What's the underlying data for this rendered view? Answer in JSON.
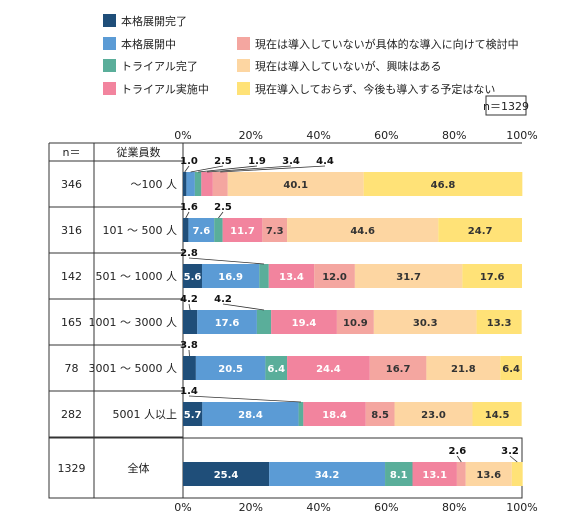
{
  "chart_data": {
    "type": "bar",
    "orientation": "horizontal",
    "stacked": true,
    "percent": true,
    "xlim": [
      0,
      100
    ],
    "x_ticks": [
      "0%",
      "20%",
      "40%",
      "60%",
      "80%",
      "100%"
    ],
    "n_label": "n＝1329",
    "table_headers": {
      "n": "n＝",
      "size": "従業員数"
    },
    "colors": [
      "#1f4e79",
      "#5b9bd5",
      "#5aae9a",
      "#f2849e",
      "#f4a6a0",
      "#fdd6a2",
      "#ffe277"
    ],
    "series": [
      {
        "name": "本格展開完了"
      },
      {
        "name": "本格展開中"
      },
      {
        "name": "トライアル完了"
      },
      {
        "name": "トライアル実施中"
      },
      {
        "name": "現在は導入していないが具体的な導入に向けて検討中"
      },
      {
        "name": "現在は導入していないが、興味はある"
      },
      {
        "name": "現在導入しておらず、今後も導入する予定はない"
      }
    ],
    "rows": [
      {
        "n": "346",
        "label": "～100 人",
        "values": [
          1.0,
          2.5,
          1.9,
          3.4,
          4.4,
          40.1,
          46.8
        ],
        "labels": [
          "1.0",
          "2.5",
          "1.9",
          "3.4",
          "4.4",
          "40.1",
          "46.8"
        ]
      },
      {
        "n": "316",
        "label": "101 ～ 500 人",
        "values": [
          1.6,
          7.6,
          2.5,
          11.7,
          7.3,
          44.6,
          24.7
        ],
        "labels": [
          "1.6",
          "7.6",
          "2.5",
          "11.7",
          "7.3",
          "44.6",
          "24.7"
        ]
      },
      {
        "n": "142",
        "label": "501 ～ 1000 人",
        "values": [
          5.6,
          16.9,
          2.8,
          13.4,
          12.0,
          31.7,
          17.6
        ],
        "labels": [
          "5.6",
          "16.9",
          "2.8",
          "13.4",
          "12.0",
          "31.7",
          "17.6"
        ]
      },
      {
        "n": "165",
        "label": "1001 ～ 3000 人",
        "values": [
          4.2,
          17.6,
          4.2,
          19.4,
          10.9,
          30.3,
          13.3
        ],
        "labels": [
          "4.2",
          "17.6",
          "4.2",
          "19.4",
          "10.9",
          "30.3",
          "13.3"
        ]
      },
      {
        "n": "78",
        "label": "3001 ～ 5000 人",
        "values": [
          3.8,
          20.5,
          6.4,
          24.4,
          16.7,
          21.8,
          6.4
        ],
        "labels": [
          "3.8",
          "20.5",
          "6.4",
          "24.4",
          "16.7",
          "21.8",
          "6.4"
        ]
      },
      {
        "n": "282",
        "label": "5001 人以上",
        "values": [
          5.7,
          28.4,
          1.4,
          18.4,
          8.5,
          23.0,
          14.5
        ],
        "labels": [
          "5.7",
          "28.4",
          "1.4",
          "18.4",
          "8.5",
          "23.0",
          "14.5"
        ]
      }
    ],
    "total": {
      "n": "1329",
      "label": "全体",
      "values": [
        25.4,
        34.2,
        8.1,
        13.1,
        2.6,
        13.6,
        3.2
      ],
      "labels": [
        "25.4",
        "34.2",
        "8.1",
        "13.1",
        "2.6",
        "13.6",
        "3.2"
      ]
    }
  }
}
